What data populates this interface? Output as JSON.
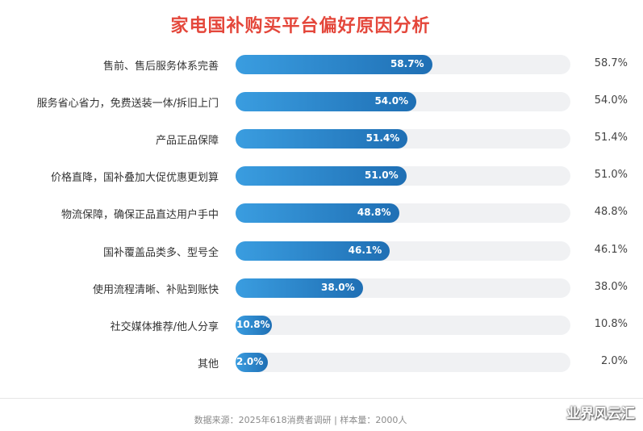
{
  "chart_data": {
    "type": "bar",
    "orientation": "horizontal",
    "title": "家电国补购买平台偏好原因分析",
    "categories": [
      "售前、售后服务体系完善",
      "服务省心省力，免费送装一体/拆旧上门",
      "产品正品保障",
      "价格直降，国补叠加大促优惠更划算",
      "物流保障，确保正品直达用户手中",
      "国补覆盖品类多、型号全",
      "使用流程清晰、补贴到账快",
      "社交媒体推荐/他人分享",
      "其他"
    ],
    "values": [
      58.7,
      54.0,
      51.4,
      51.0,
      48.8,
      46.1,
      38.0,
      10.8,
      2.0
    ],
    "value_labels": [
      "58.7%",
      "54.0%",
      "51.4%",
      "51.0%",
      "48.8%",
      "46.1%",
      "38.0%",
      "10.8%",
      "2.0%"
    ],
    "xlim": [
      0,
      100
    ],
    "unit": "%",
    "colors": {
      "bar_start": "#3a9de0",
      "bar_end": "#1f6fb4",
      "track": "#f0f1f3",
      "title": "#e4473b"
    },
    "grid": false,
    "legend": "none"
  },
  "footer": {
    "source": "数据来源：2025年618消费者调研 | 样本量：2000人",
    "watermark": "业界风云汇"
  }
}
